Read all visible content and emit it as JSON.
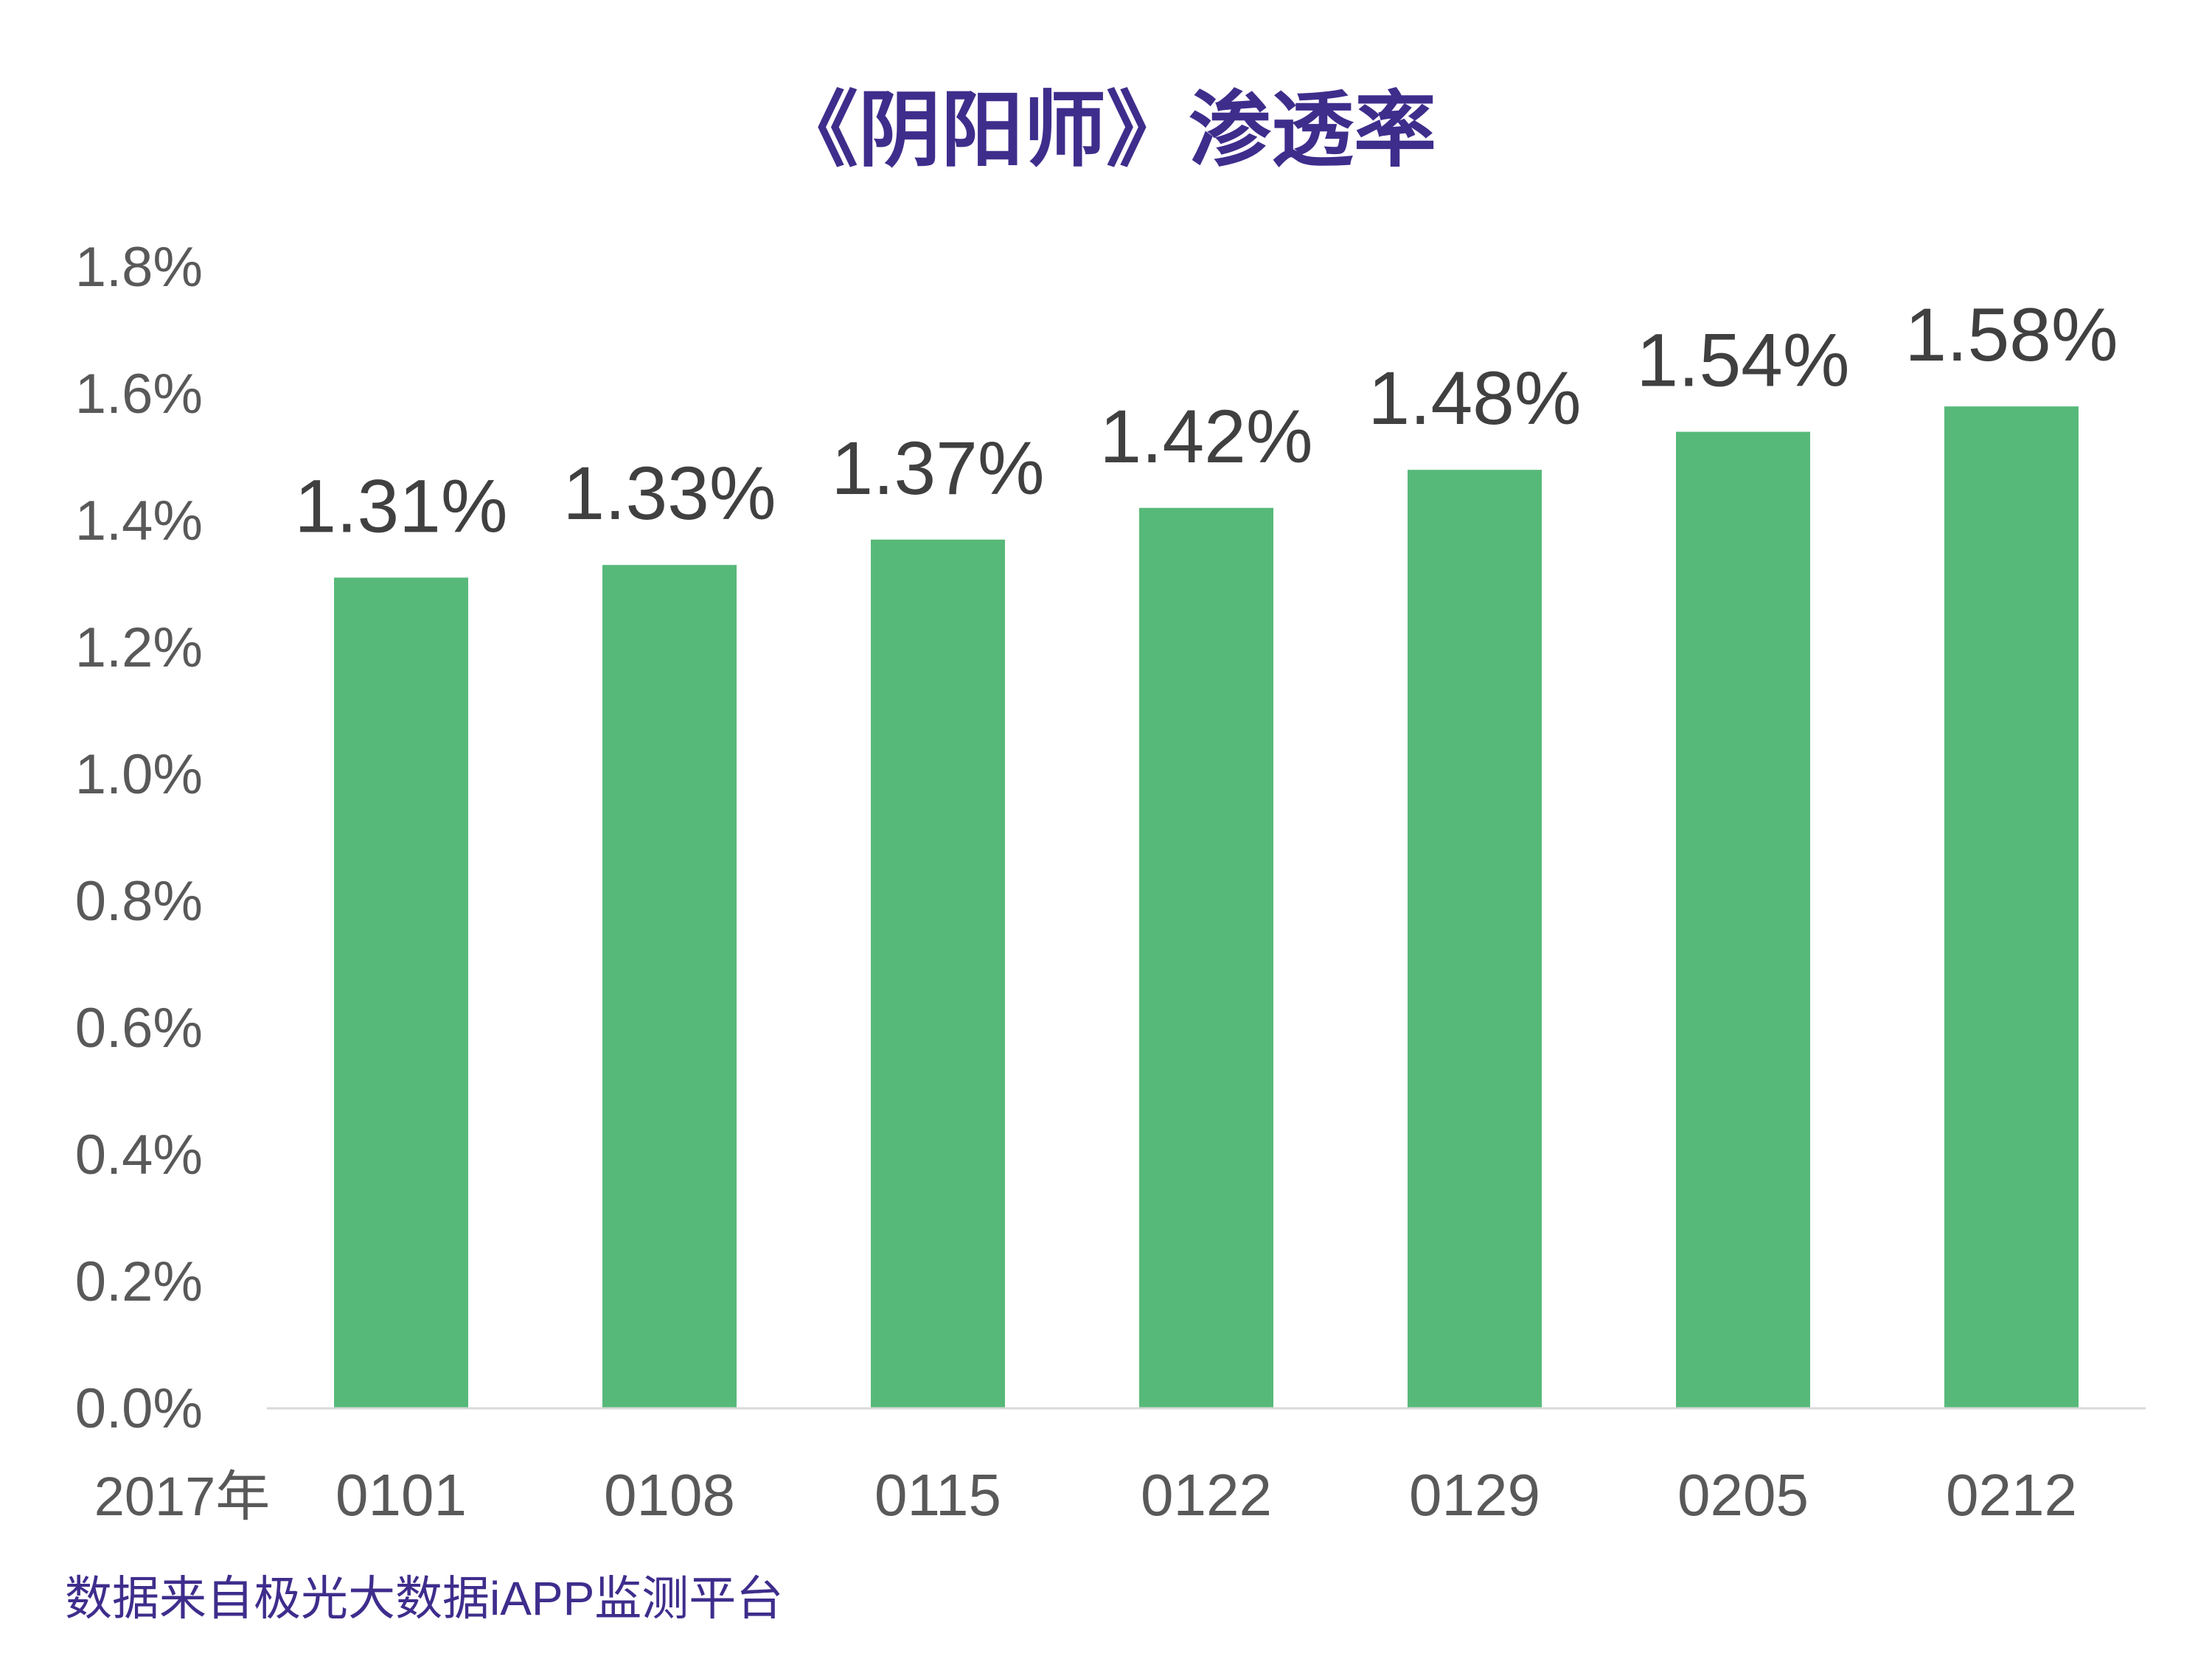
{
  "chart_data": {
    "type": "bar",
    "title": "《阴阳师》渗透率",
    "x_axis_prefix": "2017年",
    "categories": [
      "0101",
      "0108",
      "0115",
      "0122",
      "0129",
      "0205",
      "0212"
    ],
    "values": [
      1.31,
      1.33,
      1.37,
      1.42,
      1.48,
      1.54,
      1.58
    ],
    "value_labels": [
      "1.31%",
      "1.33%",
      "1.37%",
      "1.42%",
      "1.48%",
      "1.54%",
      "1.58%"
    ],
    "unit": "%",
    "ylim": [
      0,
      1.8
    ],
    "yticks": [
      "0.0%",
      "0.2%",
      "0.4%",
      "0.6%",
      "0.8%",
      "1.0%",
      "1.2%",
      "1.4%",
      "1.6%",
      "1.8%"
    ],
    "grid": false,
    "legend": "none"
  },
  "colors": {
    "bar": "#57b979",
    "title": "#3f2d8c",
    "source": "#3f2d8c",
    "axis_text": "#595959",
    "label_text": "#404040",
    "baseline": "#d9d9d9"
  },
  "source_note": "数据来自极光大数据iAPP监测平台"
}
